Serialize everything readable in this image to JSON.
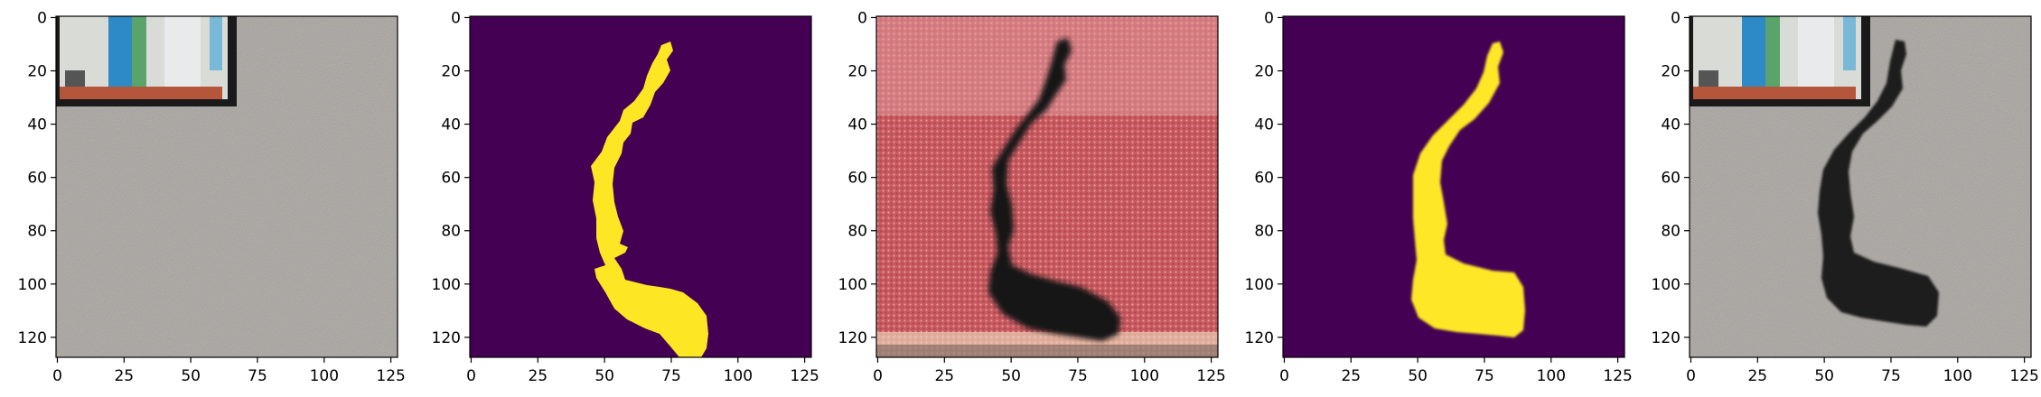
{
  "figure": {
    "panels": [
      {
        "id": "input-image",
        "description_icon": "photo-icon"
      },
      {
        "id": "ground-truth-mask",
        "description_icon": "mask-icon"
      },
      {
        "id": "generated-image",
        "description_icon": "photo-icon"
      },
      {
        "id": "predicted-mask",
        "description_icon": "mask-icon"
      },
      {
        "id": "overlay-result",
        "description_icon": "photo-icon"
      }
    ],
    "x_ticks": [
      "0",
      "25",
      "50",
      "75",
      "100",
      "125"
    ],
    "y_ticks": [
      "0",
      "20",
      "40",
      "60",
      "80",
      "100",
      "120"
    ],
    "colors": {
      "mask_background": "#440154",
      "mask_foreground": "#fde725",
      "concrete": "#a9a6a1",
      "stain": "#141414",
      "red_texture": "#c7545a"
    }
  }
}
